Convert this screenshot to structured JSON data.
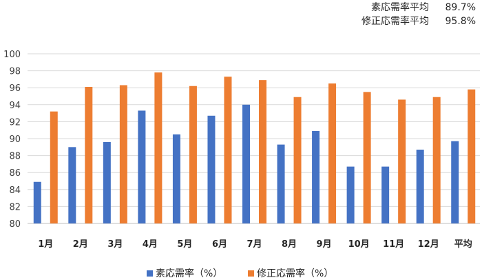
{
  "summary": {
    "rows": [
      {
        "label": "素応需率平均",
        "value": "89.7%"
      },
      {
        "label": "修正応需率平均",
        "value": "95.8%"
      }
    ]
  },
  "chart_data": {
    "type": "bar",
    "categories": [
      "1月",
      "2月",
      "3月",
      "4月",
      "5月",
      "6月",
      "7月",
      "8月",
      "9月",
      "10月",
      "11月",
      "12月",
      "平均"
    ],
    "series": [
      {
        "name": "素応需率（%）",
        "color": "#4472C4",
        "values": [
          84.9,
          89.0,
          89.6,
          93.3,
          90.5,
          92.7,
          94.0,
          89.3,
          90.9,
          86.7,
          86.7,
          88.7,
          89.7
        ]
      },
      {
        "name": "修正応需率（%）",
        "color": "#ED7D31",
        "values": [
          93.2,
          96.1,
          96.3,
          97.8,
          96.2,
          97.3,
          96.9,
          94.9,
          96.5,
          95.5,
          94.6,
          94.9,
          95.8
        ]
      }
    ],
    "ylim": [
      80,
      100
    ],
    "yticks": [
      80,
      82,
      84,
      86,
      88,
      90,
      92,
      94,
      96,
      98,
      100
    ],
    "grid": true,
    "legend_position": "bottom"
  }
}
